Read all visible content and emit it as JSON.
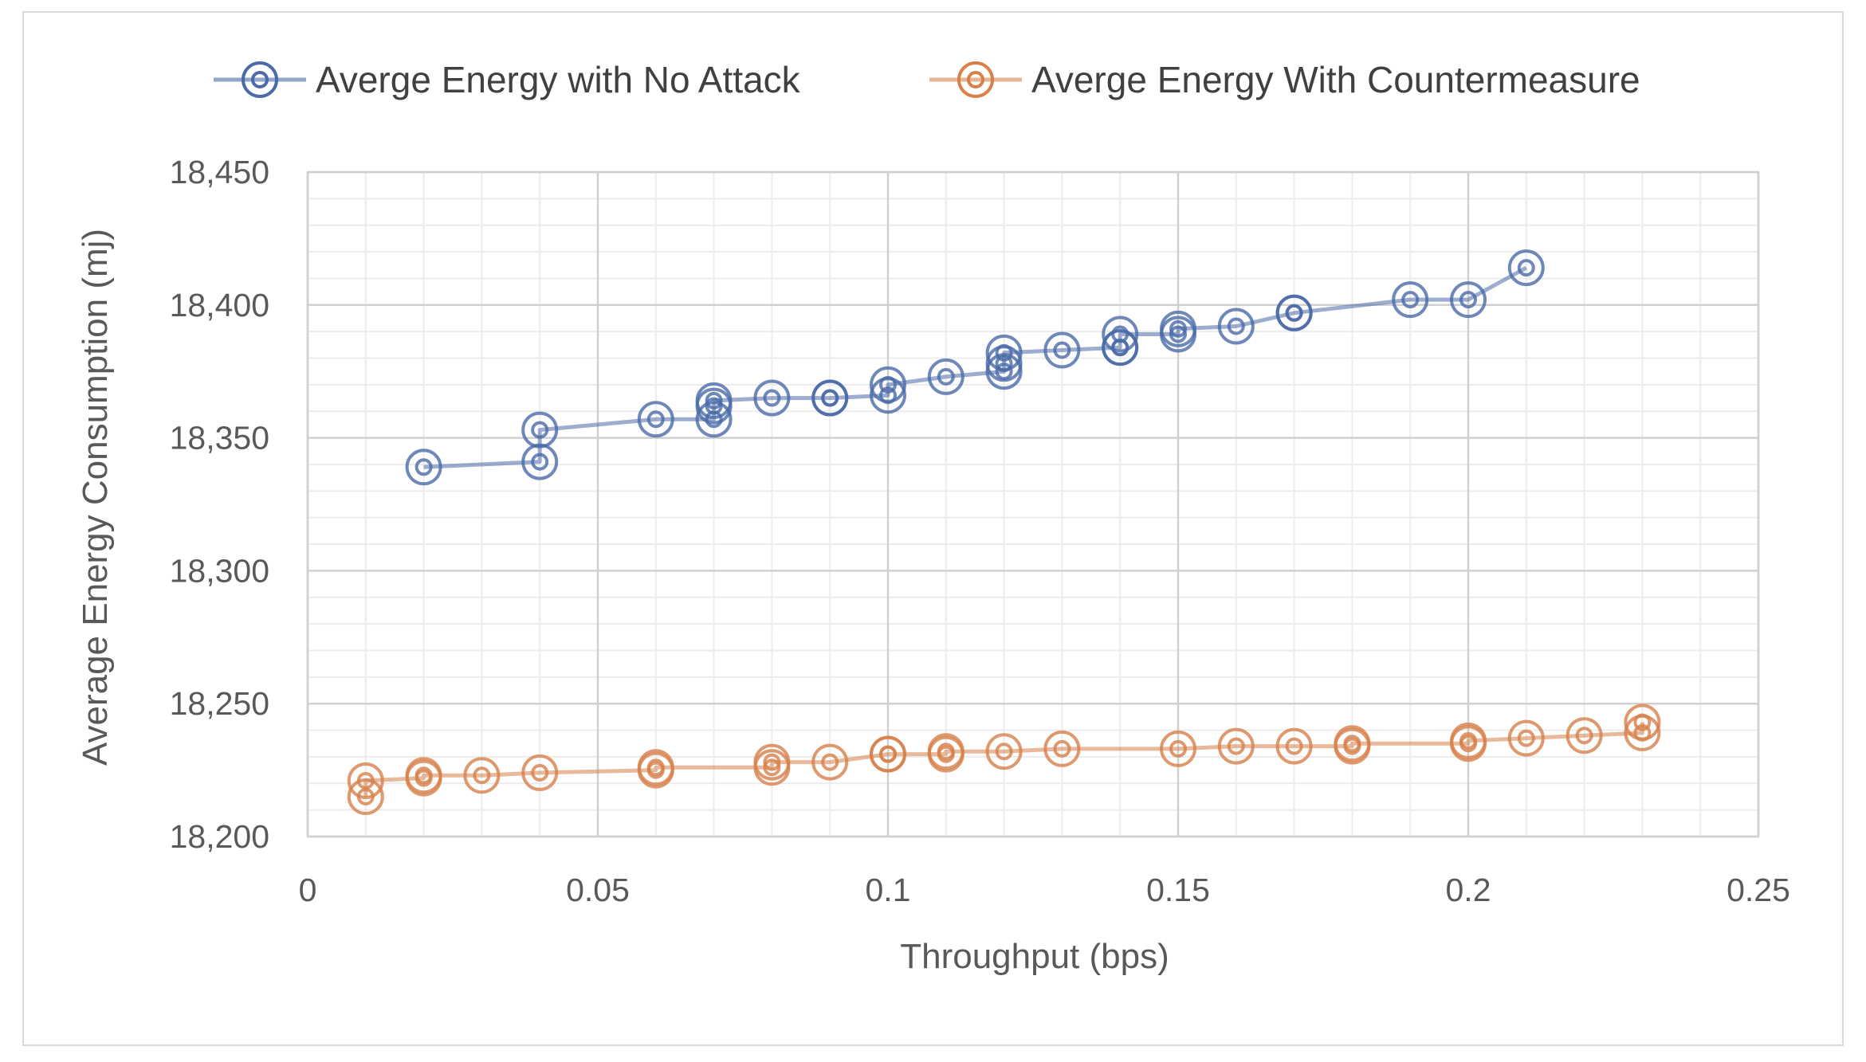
{
  "chart_data": {
    "type": "scatter",
    "title": "",
    "xlabel": "Throughput (bps)",
    "ylabel": "Average Energy Consumption (mj)",
    "xlim": [
      0,
      0.25
    ],
    "ylim": [
      18200,
      18450
    ],
    "x_ticks": [
      0,
      0.05,
      0.1,
      0.15,
      0.2,
      0.25
    ],
    "x_tick_labels": [
      "0",
      "0.05",
      "0.1",
      "0.15",
      "0.2",
      "0.25"
    ],
    "y_ticks": [
      18200,
      18250,
      18300,
      18350,
      18400,
      18450
    ],
    "y_tick_labels": [
      "18,200",
      "18,250",
      "18,300",
      "18,350",
      "18,400",
      "18,450"
    ],
    "grid": true,
    "legend_position": "top",
    "series": [
      {
        "name": "Averge Energy with No Attack",
        "color": "#4a6aa8",
        "points": [
          [
            0.02,
            18339
          ],
          [
            0.04,
            18341
          ],
          [
            0.04,
            18353
          ],
          [
            0.06,
            18357
          ],
          [
            0.07,
            18357
          ],
          [
            0.07,
            18362
          ],
          [
            0.07,
            18364
          ],
          [
            0.08,
            18365
          ],
          [
            0.09,
            18365
          ],
          [
            0.09,
            18365
          ],
          [
            0.1,
            18366
          ],
          [
            0.1,
            18370
          ],
          [
            0.11,
            18373
          ],
          [
            0.12,
            18375
          ],
          [
            0.12,
            18378
          ],
          [
            0.12,
            18382
          ],
          [
            0.13,
            18383
          ],
          [
            0.14,
            18384
          ],
          [
            0.14,
            18384
          ],
          [
            0.14,
            18389
          ],
          [
            0.15,
            18389
          ],
          [
            0.15,
            18391
          ],
          [
            0.16,
            18392
          ],
          [
            0.17,
            18397
          ],
          [
            0.17,
            18397
          ],
          [
            0.19,
            18402
          ],
          [
            0.2,
            18402
          ],
          [
            0.21,
            18414
          ]
        ]
      },
      {
        "name": "Averge Energy With Countermeasure",
        "color": "#d7804a",
        "points": [
          [
            0.01,
            18215
          ],
          [
            0.01,
            18221
          ],
          [
            0.02,
            18222
          ],
          [
            0.02,
            18223
          ],
          [
            0.03,
            18223
          ],
          [
            0.04,
            18224
          ],
          [
            0.06,
            18225
          ],
          [
            0.06,
            18226
          ],
          [
            0.08,
            18226
          ],
          [
            0.08,
            18228
          ],
          [
            0.09,
            18228
          ],
          [
            0.1,
            18231
          ],
          [
            0.1,
            18231
          ],
          [
            0.11,
            18231
          ],
          [
            0.11,
            18232
          ],
          [
            0.12,
            18232
          ],
          [
            0.13,
            18233
          ],
          [
            0.15,
            18233
          ],
          [
            0.16,
            18234
          ],
          [
            0.17,
            18234
          ],
          [
            0.18,
            18234
          ],
          [
            0.18,
            18235
          ],
          [
            0.2,
            18235
          ],
          [
            0.2,
            18236
          ],
          [
            0.21,
            18237
          ],
          [
            0.22,
            18238
          ],
          [
            0.23,
            18239
          ],
          [
            0.23,
            18243
          ]
        ]
      }
    ]
  }
}
